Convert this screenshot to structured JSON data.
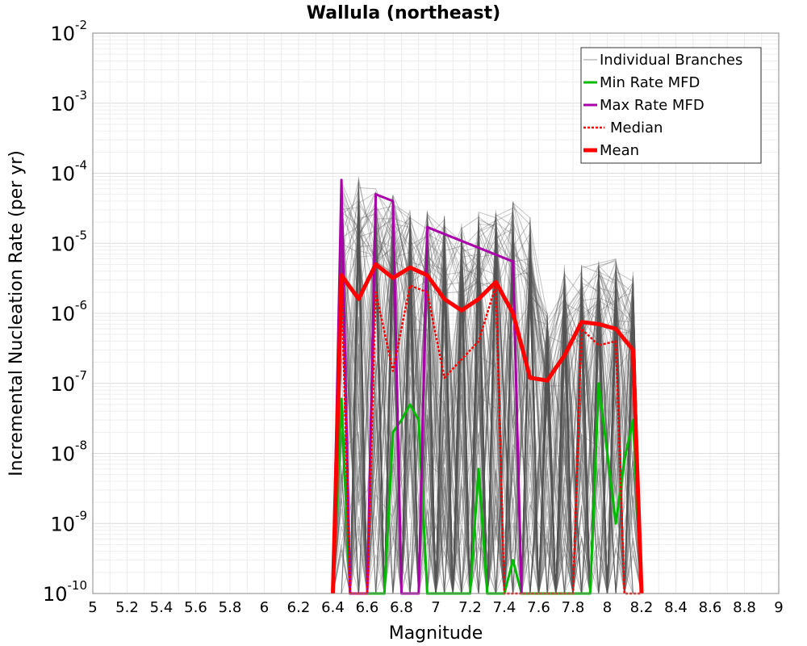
{
  "chart_data": {
    "type": "line",
    "title": "Wallula (northeast)",
    "xlabel": "Magnitude",
    "ylabel": "Incremental Nucleation Rate (per yr)",
    "xlim": [
      5,
      9
    ],
    "ylim": [
      1e-10,
      0.01
    ],
    "y_scale": "log",
    "grid": true,
    "legend_placement": "top-right",
    "x_ticks": [
      "5",
      "5.2",
      "5.4",
      "5.6",
      "5.8",
      "6",
      "6.2",
      "6.4",
      "6.6",
      "6.8",
      "7",
      "7.2",
      "7.4",
      "7.6",
      "7.8",
      "8",
      "8.2",
      "8.4",
      "8.6",
      "8.8",
      "9"
    ],
    "y_ticks": [
      {
        "base": "10",
        "exp": "-2",
        "value": 0.01
      },
      {
        "base": "10",
        "exp": "-3",
        "value": 0.001
      },
      {
        "base": "10",
        "exp": "-4",
        "value": 0.0001
      },
      {
        "base": "10",
        "exp": "-5",
        "value": 1e-05
      },
      {
        "base": "10",
        "exp": "-6",
        "value": 1e-06
      },
      {
        "base": "10",
        "exp": "-7",
        "value": 1e-07
      },
      {
        "base": "10",
        "exp": "-8",
        "value": 1e-08
      },
      {
        "base": "10",
        "exp": "-9",
        "value": 1e-09
      },
      {
        "base": "10",
        "exp": "-10",
        "value": 1e-10
      }
    ],
    "series": [
      {
        "name": "Individual Branches",
        "color": "#555555",
        "style": "solid-thin",
        "note_visible_as_band": true,
        "envelope_upper": {
          "x": [
            6.45,
            6.55,
            6.65,
            6.75,
            6.85,
            6.95,
            7.05,
            7.15,
            7.25,
            7.35,
            7.45,
            7.55,
            7.65,
            7.75,
            7.85,
            7.95,
            8.05,
            8.15
          ],
          "y": [
            8e-05,
            9e-05,
            6e-05,
            5e-05,
            3e-05,
            3e-05,
            2.5e-05,
            2e-05,
            3e-05,
            3e-05,
            4e-05,
            2.5e-05,
            1e-06,
            5e-06,
            5e-06,
            6e-06,
            6e-06,
            4e-06
          ]
        }
      },
      {
        "name": "Min Rate MFD",
        "color": "#00bb00",
        "style": "solid",
        "x": [
          6.4,
          6.45,
          6.5,
          6.55,
          6.6,
          6.65,
          6.7,
          6.75,
          6.8,
          6.85,
          6.9,
          6.95,
          7.0,
          7.05,
          7.1,
          7.15,
          7.2,
          7.25,
          7.3,
          7.35,
          7.4,
          7.45,
          7.5,
          7.55,
          7.6,
          7.65,
          7.7,
          7.75,
          7.8,
          7.85,
          7.9,
          7.95,
          8.0,
          8.05,
          8.1,
          8.15,
          8.2
        ],
        "y": [
          1e-10,
          6e-08,
          1e-10,
          1e-10,
          1e-10,
          1e-10,
          1e-10,
          2e-08,
          3e-08,
          5e-08,
          3e-08,
          1e-10,
          1e-10,
          1e-10,
          1e-10,
          1e-10,
          1e-10,
          6e-09,
          1e-10,
          1e-10,
          1e-10,
          3e-10,
          1e-10,
          1e-10,
          1e-10,
          1e-10,
          1e-10,
          1e-10,
          1e-10,
          1e-10,
          1e-10,
          1e-07,
          1e-08,
          1e-09,
          8e-09,
          3e-08,
          1e-10
        ]
      },
      {
        "name": "Max Rate MFD",
        "color": "#aa00aa",
        "style": "solid",
        "x": [
          6.4,
          6.45,
          6.5,
          6.6,
          6.65,
          6.75,
          6.8,
          6.9,
          6.95,
          7.45,
          7.5
        ],
        "y": [
          1e-10,
          8e-05,
          1e-10,
          1e-10,
          5e-05,
          4e-05,
          1e-10,
          1e-10,
          1.7e-05,
          5.5e-06,
          1e-10
        ]
      },
      {
        "name": "Median",
        "color": "#ff0000",
        "style": "dotted",
        "x": [
          6.4,
          6.45,
          6.5,
          6.6,
          6.65,
          6.75,
          6.85,
          6.95,
          7.05,
          7.25,
          7.35,
          7.4,
          7.45,
          7.75,
          7.8,
          7.85,
          7.95,
          8.05,
          8.1,
          8.15,
          8.2
        ],
        "y": [
          1e-10,
          3e-06,
          1e-10,
          1e-10,
          2e-06,
          1.5e-07,
          2.5e-06,
          2e-06,
          1.2e-07,
          4e-07,
          2.5e-06,
          1e-10,
          1e-10,
          1e-10,
          1e-10,
          6e-07,
          3.5e-07,
          4e-07,
          1e-10,
          1e-10,
          1e-10
        ]
      },
      {
        "name": "Mean",
        "color": "#ff0000",
        "style": "thick",
        "x": [
          6.4,
          6.45,
          6.55,
          6.65,
          6.75,
          6.85,
          6.95,
          7.05,
          7.15,
          7.25,
          7.35,
          7.45,
          7.55,
          7.65,
          7.75,
          7.85,
          7.95,
          8.05,
          8.15,
          8.2
        ],
        "y": [
          1e-10,
          3.5e-06,
          1.6e-06,
          5e-06,
          3.2e-06,
          4.5e-06,
          3.5e-06,
          1.6e-06,
          1.1e-06,
          1.6e-06,
          2.8e-06,
          1e-06,
          1.2e-07,
          1.1e-07,
          2.5e-07,
          7.5e-07,
          7e-07,
          6e-07,
          3e-07,
          1e-10
        ]
      }
    ]
  }
}
